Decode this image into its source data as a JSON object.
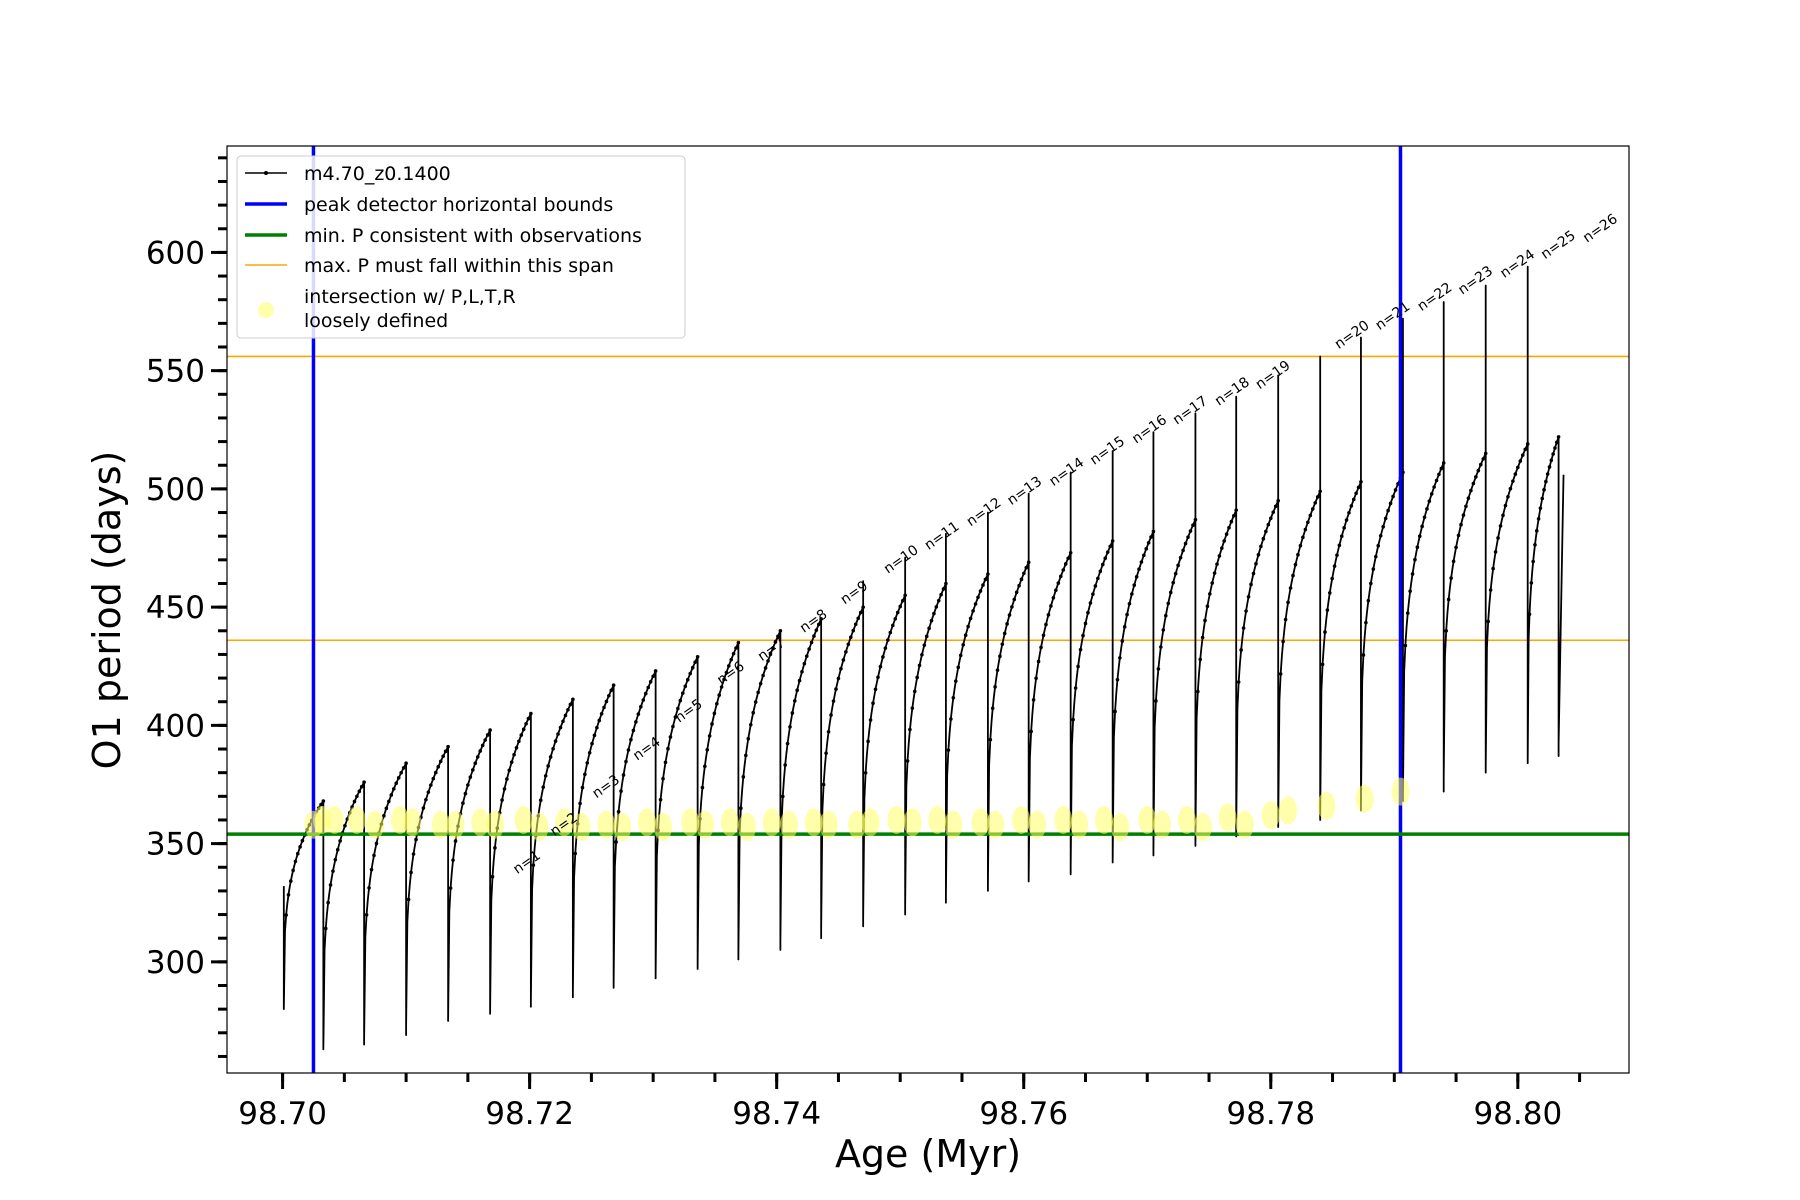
{
  "chart_data": {
    "type": "line",
    "xlabel": "Age (Myr)",
    "ylabel": "O1 period (days)",
    "xlim": [
      98.6955,
      98.809
    ],
    "ylim": [
      253,
      645
    ],
    "x_ticks": [
      "98.70",
      "98.72",
      "98.74",
      "98.76",
      "98.78",
      "98.80"
    ],
    "x_tick_values": [
      98.7,
      98.72,
      98.74,
      98.76,
      98.78,
      98.8
    ],
    "y_ticks": [
      "300",
      "350",
      "400",
      "450",
      "500",
      "550",
      "600"
    ],
    "y_tick_values": [
      300,
      350,
      400,
      450,
      500,
      550,
      600
    ],
    "minor_tick_step_x": 0.005,
    "minor_tick_step_y": 10,
    "grid": false,
    "legend_position": "top-left",
    "legend": [
      {
        "label": "m4.70_z0.1400",
        "color": "#000000",
        "kind": "line-marker"
      },
      {
        "label": "peak detector horizontal bounds",
        "color": "#0000ff",
        "kind": "line"
      },
      {
        "label": "min. P consistent with observations",
        "color": "#008000",
        "kind": "line"
      },
      {
        "label": "max. P must fall within this span",
        "color": "#ffa500",
        "kind": "line"
      },
      {
        "label": "intersection w/ P,L,T,R",
        "label2": "loosely defined",
        "color": "#ffff66",
        "kind": "point"
      }
    ],
    "reference_lines": {
      "vertical_blue": [
        98.7025,
        98.7905
      ],
      "horizontal_green": 354,
      "horizontal_orange": [
        436,
        556
      ]
    },
    "series": [
      {
        "name": "m4.70_z0.1400",
        "color": "#000000",
        "cycles": [
          {
            "start": 98.7001,
            "end": 98.7033,
            "min": 280,
            "max": 368,
            "spike": 332
          },
          {
            "start": 98.7033,
            "end": 98.7066,
            "min": 263,
            "max": 376,
            "spike": 320
          },
          {
            "start": 98.7066,
            "end": 98.71,
            "min": 267,
            "max": 384,
            "spike": 342
          },
          {
            "start": 98.71,
            "end": 98.7134,
            "min": 273,
            "max": 391,
            "spike": 355
          },
          {
            "start": 98.7134,
            "end": 98.7168,
            "min": 276,
            "max": 398,
            "spike": 360
          },
          {
            "start": 98.7168,
            "end": 98.7201,
            "min": 279,
            "max": 405,
            "spike": 365
          },
          {
            "start": 98.7201,
            "end": 98.7235,
            "min": 283,
            "max": 411,
            "spike": 370
          },
          {
            "start": 98.7235,
            "end": 98.7268,
            "min": 287,
            "max": 417,
            "spike": 376
          },
          {
            "start": 98.7268,
            "end": 98.7302,
            "min": 291,
            "max": 423,
            "spike": 382
          },
          {
            "start": 98.7302,
            "end": 98.7336,
            "min": 295,
            "max": 429,
            "spike": 388
          },
          {
            "start": 98.7336,
            "end": 98.7369,
            "min": 299,
            "max": 435,
            "spike": 394
          },
          {
            "start": 98.7369,
            "end": 98.7403,
            "min": 303,
            "max": 440,
            "spike": 406
          },
          {
            "start": 98.7403,
            "end": 98.7436,
            "min": 308,
            "max": 445,
            "spike": 418
          },
          {
            "start": 98.7436,
            "end": 98.747,
            "min": 313,
            "max": 450,
            "spike": 430
          },
          {
            "start": 98.747,
            "end": 98.7504,
            "min": 318,
            "max": 455,
            "spike": 461
          },
          {
            "start": 98.7504,
            "end": 98.7537,
            "min": 323,
            "max": 460,
            "spike": 471
          },
          {
            "start": 98.7537,
            "end": 98.7571,
            "min": 328,
            "max": 464,
            "spike": 481
          },
          {
            "start": 98.7571,
            "end": 98.7604,
            "min": 332,
            "max": 469,
            "spike": 490
          },
          {
            "start": 98.7604,
            "end": 98.7638,
            "min": 335,
            "max": 473,
            "spike": 498
          },
          {
            "start": 98.7638,
            "end": 98.7672,
            "min": 340,
            "max": 478,
            "spike": 507
          },
          {
            "start": 98.7672,
            "end": 98.7705,
            "min": 343,
            "max": 482,
            "spike": 516
          },
          {
            "start": 98.7705,
            "end": 98.7739,
            "min": 347,
            "max": 487,
            "spike": 524
          },
          {
            "start": 98.7739,
            "end": 98.7772,
            "min": 351,
            "max": 491,
            "spike": 532
          },
          {
            "start": 98.7772,
            "end": 98.7806,
            "min": 355,
            "max": 495,
            "spike": 539
          },
          {
            "start": 98.7806,
            "end": 98.784,
            "min": 358,
            "max": 499,
            "spike": 548
          },
          {
            "start": 98.784,
            "end": 98.7873,
            "min": 362,
            "max": 503,
            "spike": 556
          },
          {
            "start": 98.7873,
            "end": 98.7907,
            "min": 366,
            "max": 507,
            "spike": 564
          },
          {
            "start": 98.7907,
            "end": 98.794,
            "min": 370,
            "max": 511,
            "spike": 572
          },
          {
            "start": 98.794,
            "end": 98.7974,
            "min": 378,
            "max": 515,
            "spike": 579
          },
          {
            "start": 98.7974,
            "end": 98.8008,
            "min": 382,
            "max": 519,
            "spike": 586
          },
          {
            "start": 98.8008,
            "end": 98.8033,
            "min": 385,
            "max": 522,
            "spike": 594
          }
        ],
        "final_rise": {
          "start": 98.8033,
          "end": 98.8037,
          "from": 392,
          "to": 506
        }
      }
    ],
    "intersection_points": [
      {
        "x": 98.7025,
        "y": 358
      },
      {
        "x": 98.7032,
        "y": 360
      },
      {
        "x": 98.7042,
        "y": 360
      },
      {
        "x": 98.706,
        "y": 360
      },
      {
        "x": 98.7075,
        "y": 358
      },
      {
        "x": 98.7095,
        "y": 360
      },
      {
        "x": 98.7105,
        "y": 359
      },
      {
        "x": 98.7128,
        "y": 358
      },
      {
        "x": 98.714,
        "y": 358
      },
      {
        "x": 98.716,
        "y": 359
      },
      {
        "x": 98.7172,
        "y": 358
      },
      {
        "x": 98.7195,
        "y": 360
      },
      {
        "x": 98.7208,
        "y": 357
      },
      {
        "x": 98.7228,
        "y": 359
      },
      {
        "x": 98.7242,
        "y": 357
      },
      {
        "x": 98.7262,
        "y": 358
      },
      {
        "x": 98.7275,
        "y": 357
      },
      {
        "x": 98.7295,
        "y": 359
      },
      {
        "x": 98.7308,
        "y": 357
      },
      {
        "x": 98.733,
        "y": 359
      },
      {
        "x": 98.7342,
        "y": 358
      },
      {
        "x": 98.7362,
        "y": 359
      },
      {
        "x": 98.7376,
        "y": 357
      },
      {
        "x": 98.7396,
        "y": 359
      },
      {
        "x": 98.741,
        "y": 358
      },
      {
        "x": 98.743,
        "y": 359
      },
      {
        "x": 98.7442,
        "y": 358
      },
      {
        "x": 98.7465,
        "y": 358
      },
      {
        "x": 98.7476,
        "y": 359
      },
      {
        "x": 98.7497,
        "y": 360
      },
      {
        "x": 98.751,
        "y": 359
      },
      {
        "x": 98.753,
        "y": 360
      },
      {
        "x": 98.7543,
        "y": 358
      },
      {
        "x": 98.7565,
        "y": 359
      },
      {
        "x": 98.7577,
        "y": 358
      },
      {
        "x": 98.7598,
        "y": 360
      },
      {
        "x": 98.7611,
        "y": 358
      },
      {
        "x": 98.7632,
        "y": 360
      },
      {
        "x": 98.7645,
        "y": 358
      },
      {
        "x": 98.7665,
        "y": 360
      },
      {
        "x": 98.7678,
        "y": 357
      },
      {
        "x": 98.77,
        "y": 360
      },
      {
        "x": 98.7712,
        "y": 358
      },
      {
        "x": 98.7732,
        "y": 360
      },
      {
        "x": 98.7745,
        "y": 357
      },
      {
        "x": 98.7765,
        "y": 361
      },
      {
        "x": 98.7779,
        "y": 358
      },
      {
        "x": 98.78,
        "y": 362
      },
      {
        "x": 98.7814,
        "y": 364
      },
      {
        "x": 98.7845,
        "y": 366
      },
      {
        "x": 98.7876,
        "y": 369
      },
      {
        "x": 98.7905,
        "y": 372
      }
    ],
    "annotations": [
      {
        "text": "n=1",
        "x": 98.719,
        "y": 337
      },
      {
        "text": "n=2",
        "x": 98.722,
        "y": 353
      },
      {
        "text": "n=3",
        "x": 98.7254,
        "y": 369
      },
      {
        "text": "n=4",
        "x": 98.7287,
        "y": 385
      },
      {
        "text": "n=5",
        "x": 98.7321,
        "y": 401
      },
      {
        "text": "n=6",
        "x": 98.7355,
        "y": 417
      },
      {
        "text": "n=7",
        "x": 98.7388,
        "y": 427
      },
      {
        "text": "n=8",
        "x": 98.7422,
        "y": 439
      },
      {
        "text": "n=9",
        "x": 98.7455,
        "y": 451
      },
      {
        "text": "n=10",
        "x": 98.749,
        "y": 464
      },
      {
        "text": "n=11",
        "x": 98.7523,
        "y": 474
      },
      {
        "text": "n=12",
        "x": 98.7557,
        "y": 484
      },
      {
        "text": "n=13",
        "x": 98.759,
        "y": 493
      },
      {
        "text": "n=14",
        "x": 98.7624,
        "y": 501
      },
      {
        "text": "n=15",
        "x": 98.7657,
        "y": 510
      },
      {
        "text": "n=16",
        "x": 98.7691,
        "y": 519
      },
      {
        "text": "n=17",
        "x": 98.7724,
        "y": 527
      },
      {
        "text": "n=18",
        "x": 98.7758,
        "y": 535
      },
      {
        "text": "n=19",
        "x": 98.7791,
        "y": 542
      },
      {
        "text": "n=20",
        "x": 98.7855,
        "y": 559
      },
      {
        "text": "n=21",
        "x": 98.7888,
        "y": 567
      },
      {
        "text": "n=22",
        "x": 98.7922,
        "y": 575
      },
      {
        "text": "n=23",
        "x": 98.7955,
        "y": 582
      },
      {
        "text": "n=24",
        "x": 98.7989,
        "y": 589
      },
      {
        "text": "n=25",
        "x": 98.8022,
        "y": 597
      },
      {
        "text": "n=26",
        "x": 98.8056,
        "y": 604
      }
    ]
  }
}
